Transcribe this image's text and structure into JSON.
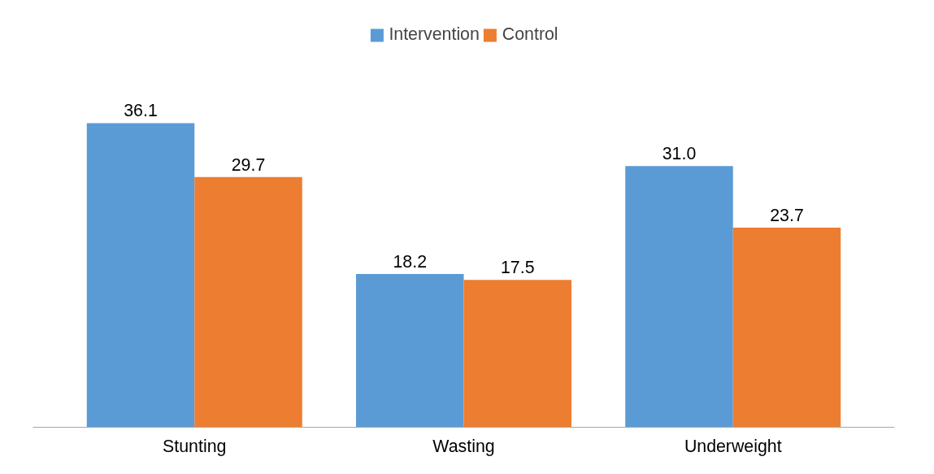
{
  "chart_data": {
    "type": "bar",
    "categories": [
      "Stunting",
      "Wasting",
      "Underweight"
    ],
    "series": [
      {
        "name": "Intervention",
        "color": "#5b9bd5",
        "values": [
          36.1,
          18.2,
          31.0
        ],
        "value_labels": [
          "36.1",
          "18.2",
          "31.0"
        ]
      },
      {
        "name": "Control",
        "color": "#ed7d31",
        "values": [
          29.7,
          17.5,
          23.7
        ],
        "value_labels": [
          "29.7",
          "17.5",
          "23.7"
        ]
      }
    ],
    "legend": "top",
    "grid": false
  }
}
